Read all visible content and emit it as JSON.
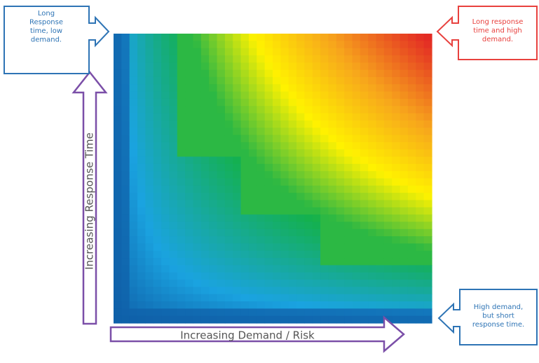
{
  "callouts": {
    "top_left": {
      "lines": [
        "Long",
        "Response",
        "time, low",
        "demand."
      ],
      "color": "#2E74B5"
    },
    "top_right": {
      "lines": [
        "Long response",
        "time and high",
        "demand."
      ],
      "color": "#E8413E"
    },
    "bottom_right": {
      "lines": [
        "High demand,",
        "but short",
        "response time."
      ],
      "color": "#2E74B5"
    }
  },
  "axes": {
    "x_label": "Increasing Demand / Risk",
    "y_label": "Increasing Response Time",
    "arrow_color": "#7B4FA8"
  },
  "heatmap": {
    "colormap": [
      "#0F5FA8",
      "#1AA3E0",
      "#14B14B",
      "#FFF200",
      "#F7A51C",
      "#E32B24"
    ]
  }
}
